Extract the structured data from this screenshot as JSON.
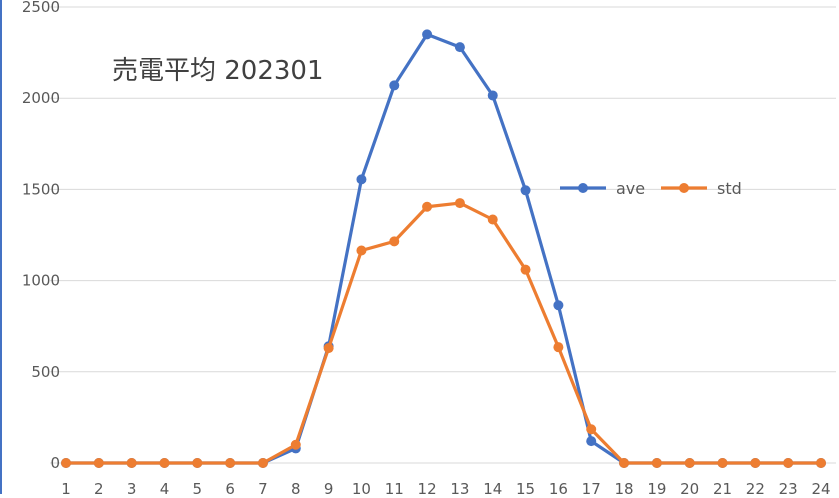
{
  "chart_data": {
    "type": "line",
    "title": "売電平均 202301",
    "xlabel": "",
    "ylabel": "",
    "categories": [
      "1",
      "2",
      "3",
      "4",
      "5",
      "6",
      "7",
      "8",
      "9",
      "10",
      "11",
      "12",
      "13",
      "14",
      "15",
      "16",
      "17",
      "18",
      "19",
      "20",
      "21",
      "22",
      "23",
      "24"
    ],
    "series": [
      {
        "name": "ave",
        "color": "#4472c4",
        "values": [
          0,
          0,
          0,
          0,
          0,
          0,
          0,
          80,
          640,
          1555,
          2070,
          2350,
          2280,
          2015,
          1495,
          865,
          120,
          0,
          0,
          0,
          0,
          0,
          0,
          0
        ]
      },
      {
        "name": "std",
        "color": "#ed7d31",
        "values": [
          0,
          0,
          0,
          0,
          0,
          0,
          0,
          100,
          630,
          1165,
          1215,
          1405,
          1425,
          1335,
          1060,
          635,
          185,
          0,
          0,
          0,
          0,
          0,
          0,
          0
        ]
      }
    ],
    "ylim": [
      0,
      2500
    ],
    "yticks": [
      0,
      500,
      1000,
      1500,
      2000,
      2500
    ],
    "grid": true,
    "legend_position": "right-middle"
  }
}
